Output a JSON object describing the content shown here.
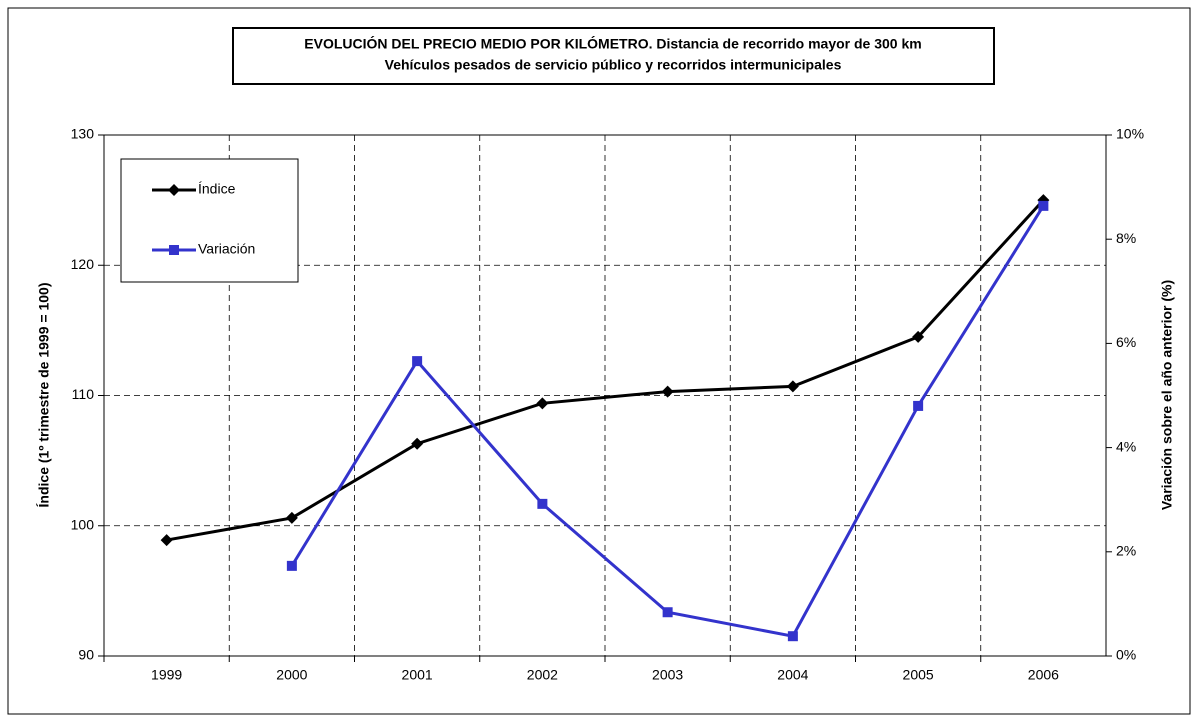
{
  "chart_data": {
    "type": "line",
    "title": "EVOLUCIÓN DEL PRECIO MEDIO POR KILÓMETRO. Distancia de recorrido mayor de 300 km",
    "subtitle": "Vehículos pesados de servicio público y recorridos intermunicipales",
    "y_label": "Índice (1º trimestre de 1999 = 100)",
    "y2_label": "Variación sobre el año anterior (%)",
    "categories": [
      "1999",
      "2000",
      "2001",
      "2002",
      "2003",
      "2004",
      "2005",
      "2006"
    ],
    "series": [
      {
        "name": "Índice",
        "color": "#000000",
        "marker": "diamond",
        "values": [
          98.9,
          100.6,
          106.3,
          109.4,
          110.3,
          110.7,
          114.5,
          125.0
        ]
      },
      {
        "name": "Variación",
        "color": "#3333cc",
        "marker": "square",
        "axis": "y2",
        "values": [
          null,
          1.73,
          5.66,
          2.92,
          0.84,
          0.38,
          4.8,
          8.64
        ]
      }
    ],
    "ylim": [
      90,
      130
    ],
    "yticks": [
      90,
      100,
      110,
      120,
      130
    ],
    "y2lim": [
      0,
      10
    ],
    "y2ticks": [
      {
        "value": 0,
        "label": "0%"
      },
      {
        "value": 2,
        "label": "2%"
      },
      {
        "value": 4,
        "label": "4%"
      },
      {
        "value": 6,
        "label": "6%"
      },
      {
        "value": 8,
        "label": "8%"
      },
      {
        "value": 10,
        "label": "10%"
      }
    ],
    "grid": true,
    "legend_position": "upper left"
  }
}
